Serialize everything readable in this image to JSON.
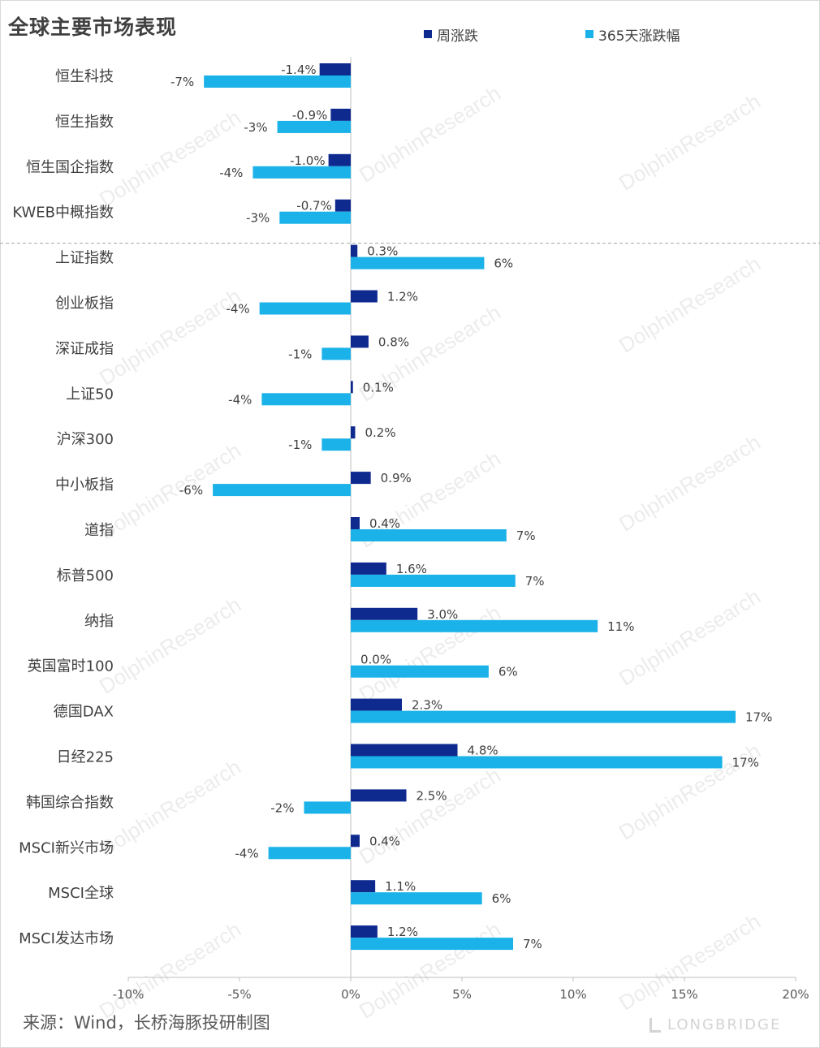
{
  "title": "全球主要市场表现",
  "source": "来源：Wind，长桥海豚投研制图",
  "logo_text": "LONGBRIDGE",
  "watermark_text": "DolphinResearch",
  "colors": {
    "weekly": "#0e2a8f",
    "annual": "#1ab2e8",
    "axis": "#bfbfbf",
    "divider": "#a6a6a6"
  },
  "chart_data": {
    "type": "bar",
    "orientation": "horizontal",
    "categories": [
      "恒生科技",
      "恒生指数",
      "恒生国企指数",
      "KWEB中概指数",
      "上证指数",
      "创业板指",
      "深证成指",
      "上证50",
      "沪深300",
      "中小板指",
      "道指",
      "标普500",
      "纳指",
      "英国富时100",
      "德国DAX",
      "日经225",
      "韩国综合指数",
      "MSCI新兴市场",
      "MSCI全球",
      "MSCI发达市场"
    ],
    "series": [
      {
        "name": "周涨跌",
        "values": [
          -1.4,
          -0.9,
          -1.0,
          -0.7,
          0.3,
          1.2,
          0.8,
          0.1,
          0.2,
          0.9,
          0.4,
          1.6,
          3.0,
          0.0,
          2.3,
          4.8,
          2.5,
          0.4,
          1.1,
          1.2
        ],
        "labels": [
          "-1.4%",
          "-0.9%",
          "-1.0%",
          "-0.7%",
          "0.3%",
          "1.2%",
          "0.8%",
          "0.1%",
          "0.2%",
          "0.9%",
          "0.4%",
          "1.6%",
          "3.0%",
          "0.0%",
          "2.3%",
          "4.8%",
          "2.5%",
          "0.4%",
          "1.1%",
          "1.2%"
        ]
      },
      {
        "name": "365天涨跌幅",
        "values": [
          -6.6,
          -3.3,
          -4.4,
          -3.2,
          6.0,
          -4.1,
          -1.3,
          -4.0,
          -1.3,
          -6.2,
          7.0,
          7.4,
          11.1,
          6.2,
          17.3,
          16.7,
          -2.1,
          -3.7,
          5.9,
          7.3
        ],
        "labels": [
          "-7%",
          "-3%",
          "-4%",
          "-3%",
          "6%",
          "-4%",
          "-1%",
          "-4%",
          "-1%",
          "-6%",
          "7%",
          "7%",
          "11%",
          "6%",
          "17%",
          "17%",
          "-2%",
          "-4%",
          "6%",
          "7%"
        ]
      }
    ],
    "xlim": [
      -10,
      20
    ],
    "xticks": [
      -10,
      -5,
      0,
      5,
      10,
      15,
      20
    ],
    "xtick_labels": [
      "-10%",
      "-5%",
      "0%",
      "5%",
      "10%",
      "15%",
      "20%"
    ],
    "legend_position": "top",
    "divider_after_category": "KWEB中概指数",
    "grid": false
  }
}
